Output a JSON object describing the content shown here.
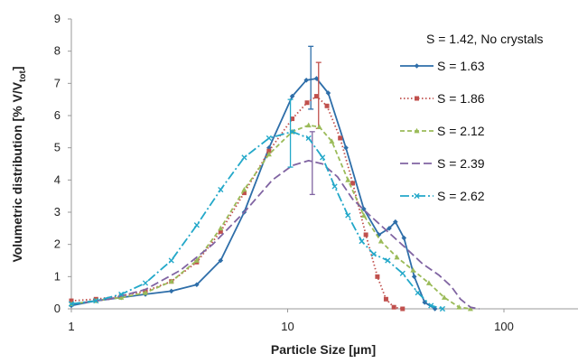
{
  "chart_data": {
    "type": "line",
    "title": "",
    "xlabel": "Particle Size [µm]",
    "ylabel": "Volumetric distribution [% V/V",
    "ylabel_subscript": "tot",
    "ylabel_suffix": "]",
    "x_scale": "log",
    "xlim": [
      1,
      220
    ],
    "ylim": [
      0,
      9
    ],
    "x_ticks": [
      1,
      10,
      100
    ],
    "x_tick_labels": [
      "1",
      "10",
      "100"
    ],
    "y_ticks": [
      0,
      1,
      2,
      3,
      4,
      5,
      6,
      7,
      8,
      9
    ],
    "grid": false,
    "legend_position": "right",
    "legend_header": "S = 1.42, No crystals",
    "series": [
      {
        "name": "S = 1.63",
        "color": "#2e6ea9",
        "dash": "solid",
        "marker": "diamond",
        "x": [
          1,
          1.3,
          1.7,
          2.2,
          2.9,
          3.8,
          4.9,
          6.3,
          8.2,
          10.5,
          12.2,
          13.6,
          15.4,
          18.6,
          22.5,
          26.4,
          29.5,
          31.5,
          34.5,
          38.5,
          43,
          48
        ],
        "values": [
          0.1,
          0.25,
          0.35,
          0.45,
          0.55,
          0.75,
          1.5,
          3.0,
          5.0,
          6.6,
          7.1,
          7.15,
          6.7,
          5.0,
          3.1,
          2.3,
          2.5,
          2.7,
          2.2,
          1.0,
          0.2,
          0.0
        ],
        "error_bars": [
          {
            "x": 12.8,
            "low": 6.2,
            "high": 8.15
          }
        ]
      },
      {
        "name": "S = 1.86",
        "color": "#c0504d",
        "dash": "dotted",
        "marker": "square",
        "x": [
          1,
          1.3,
          1.7,
          2.2,
          2.9,
          3.8,
          4.9,
          6.3,
          8.2,
          10.5,
          12.3,
          13.6,
          15.2,
          17.5,
          20,
          23,
          26,
          28.5,
          31,
          34
        ],
        "values": [
          0.25,
          0.3,
          0.4,
          0.55,
          0.85,
          1.45,
          2.4,
          3.6,
          4.9,
          5.9,
          6.4,
          6.6,
          6.3,
          5.3,
          3.9,
          2.3,
          1.0,
          0.3,
          0.05,
          0.0
        ],
        "error_bars": [
          {
            "x": 13.9,
            "low": 5.6,
            "high": 7.65
          }
        ]
      },
      {
        "name": "S = 2.12",
        "color": "#9bbb59",
        "dash": "dashed",
        "marker": "triangle",
        "x": [
          1,
          1.3,
          1.7,
          2.2,
          2.9,
          3.8,
          4.9,
          6.3,
          8.2,
          10.5,
          12.5,
          14,
          16,
          19,
          22.5,
          27,
          32,
          38,
          45,
          53,
          62,
          70
        ],
        "values": [
          0.15,
          0.25,
          0.35,
          0.5,
          0.85,
          1.5,
          2.5,
          3.7,
          4.8,
          5.5,
          5.7,
          5.65,
          5.2,
          4.0,
          2.9,
          2.1,
          1.6,
          1.2,
          0.8,
          0.35,
          0.05,
          0.0
        ]
      },
      {
        "name": "S = 2.39",
        "color": "#8064a2",
        "dash": "longdash",
        "marker": "none",
        "x": [
          1,
          1.5,
          2.2,
          3.2,
          4.5,
          6.3,
          8.5,
          10.5,
          12.5,
          14.5,
          17,
          20,
          24,
          29,
          35,
          42,
          50,
          57,
          63,
          70,
          77
        ],
        "values": [
          0.15,
          0.3,
          0.6,
          1.2,
          2.0,
          3.0,
          4.0,
          4.45,
          4.6,
          4.5,
          4.1,
          3.4,
          2.9,
          2.4,
          1.9,
          1.4,
          1.05,
          0.7,
          0.3,
          0.05,
          0.0
        ],
        "error_bars": [
          {
            "x": 13.0,
            "low": 3.55,
            "high": 5.5
          }
        ]
      },
      {
        "name": "S = 2.62",
        "color": "#23a8c9",
        "dash": "dashdot",
        "marker": "x",
        "x": [
          1,
          1.3,
          1.7,
          2.2,
          2.9,
          3.8,
          4.9,
          6.3,
          8.2,
          10.5,
          12.5,
          14.5,
          16.5,
          19,
          22,
          25,
          29,
          34,
          40,
          46,
          52
        ],
        "values": [
          0.15,
          0.25,
          0.45,
          0.8,
          1.5,
          2.6,
          3.7,
          4.7,
          5.3,
          5.5,
          5.3,
          4.7,
          3.8,
          2.9,
          2.1,
          1.7,
          1.5,
          1.1,
          0.5,
          0.1,
          0.0
        ],
        "error_bars": [
          {
            "x": 10.3,
            "low": 4.4,
            "high": 6.5
          }
        ]
      }
    ]
  }
}
